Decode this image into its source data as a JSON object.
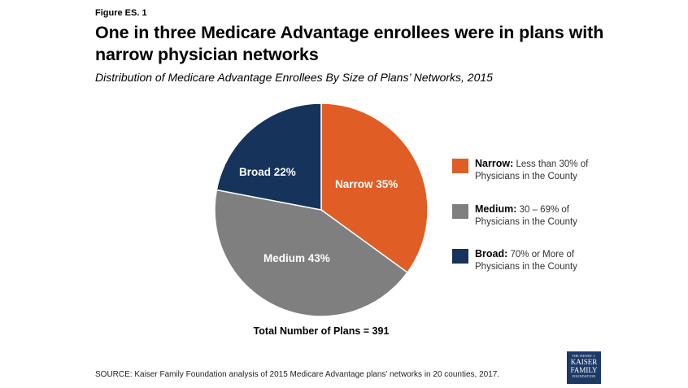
{
  "figure_label": "Figure ES. 1",
  "title": "One in three Medicare Advantage enrollees were in plans with narrow physician networks",
  "subtitle": "Distribution of Medicare Advantage Enrollees By Size of Plans’ Networks, 2015",
  "slices": [
    {
      "name": "Narrow",
      "label": "Narrow 35%",
      "value": 35,
      "color": "#e05d26"
    },
    {
      "name": "Medium",
      "label": "Medium 43%",
      "value": 43,
      "color": "#7f7f7f"
    },
    {
      "name": "Broad",
      "label": "Broad 22%",
      "value": 22,
      "color": "#15335b"
    }
  ],
  "legend": [
    {
      "key": "Narrow:",
      "desc1": "Less than 30% of",
      "desc2": "Physicians in the County",
      "color": "#e05d26"
    },
    {
      "key": "Medium:",
      "desc1": "30 – 69% of",
      "desc2": "Physicians in the County",
      "color": "#7f7f7f"
    },
    {
      "key": "Broad:",
      "desc1": "70% or More of",
      "desc2": "Physicians in the County",
      "color": "#15335b"
    }
  ],
  "total_plans": "Total Number of Plans = 391",
  "source": "SOURCE: Kaiser Family Foundation  analysis of 2015 Medicare Advantage plans’ networks in 20 counties, 2017.",
  "logo": {
    "line1": "THE HENRY J.",
    "line2": "KAISER",
    "line3": "FAMILY",
    "line4": "FOUNDATION"
  },
  "chart_data": {
    "type": "pie",
    "title": "One in three Medicare Advantage enrollees were in plans with narrow physician networks",
    "subtitle": "Distribution of Medicare Advantage Enrollees By Size of Plans’ Networks, 2015",
    "categories": [
      "Narrow",
      "Medium",
      "Broad"
    ],
    "values": [
      35,
      43,
      22
    ],
    "unit": "%",
    "colors": [
      "#e05d26",
      "#7f7f7f",
      "#15335b"
    ],
    "legend_position": "right",
    "legend": [
      "Narrow: Less than 30% of Physicians in the County",
      "Medium: 30 – 69% of Physicians in the County",
      "Broad: 70% or More of Physicians in the County"
    ],
    "annotation": "Total Number of Plans = 391"
  }
}
